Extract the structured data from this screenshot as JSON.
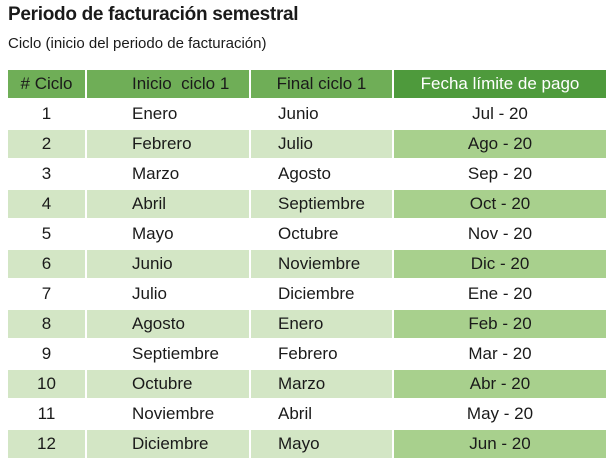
{
  "title": "Periodo de facturación semestral",
  "subtitle": "Ciclo (inicio del periodo de facturación)",
  "colors": {
    "header": "#6fae57",
    "header_accent": "#4e9a3c",
    "row_shade": "#d3e6c5",
    "row_shade_accent": "#a8d08d"
  },
  "table": {
    "headers": [
      "# Ciclo",
      "Inicio  ciclo 1",
      "Final ciclo 1",
      "Fecha límite de pago"
    ],
    "rows": [
      [
        "1",
        "Enero",
        "Junio",
        "Jul - 20"
      ],
      [
        "2",
        "Febrero",
        "Julio",
        "Ago - 20"
      ],
      [
        "3",
        "Marzo",
        "Agosto",
        "Sep - 20"
      ],
      [
        "4",
        "Abril",
        "Septiembre",
        "Oct - 20"
      ],
      [
        "5",
        "Mayo",
        "Octubre",
        "Nov - 20"
      ],
      [
        "6",
        "Junio",
        "Noviembre",
        "Dic - 20"
      ],
      [
        "7",
        "Julio",
        "Diciembre",
        "Ene - 20"
      ],
      [
        "8",
        "Agosto",
        "Enero",
        "Feb - 20"
      ],
      [
        "9",
        "Septiembre",
        "Febrero",
        "Mar - 20"
      ],
      [
        "10",
        "Octubre",
        "Marzo",
        "Abr - 20"
      ],
      [
        "11",
        "Noviembre",
        "Abril",
        "May - 20"
      ],
      [
        "12",
        "Diciembre",
        "Mayo",
        "Jun - 20"
      ]
    ]
  }
}
